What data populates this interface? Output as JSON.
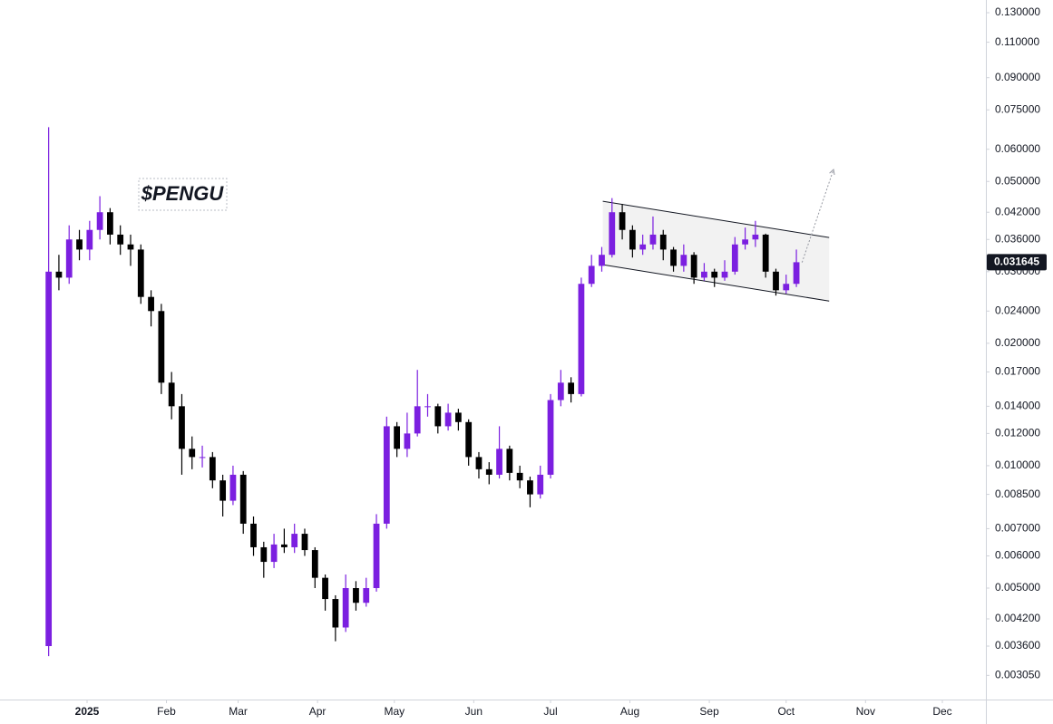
{
  "chart_data": {
    "type": "candlestick",
    "title": "$PENGU",
    "log_scale": true,
    "grid": false,
    "up_color": "#7b1fe0",
    "down_color": "#000000",
    "xlim": [
      -34,
      351
    ],
    "ylim": [
      0.00266,
      0.1397
    ],
    "xticks": [
      {
        "value": 0,
        "label": "2025"
      },
      {
        "value": 31,
        "label": "Feb"
      },
      {
        "value": 59,
        "label": "Mar"
      },
      {
        "value": 90,
        "label": "Apr"
      },
      {
        "value": 120,
        "label": "May"
      },
      {
        "value": 151,
        "label": "Jun"
      },
      {
        "value": 181,
        "label": "Jul"
      },
      {
        "value": 212,
        "label": "Aug"
      },
      {
        "value": 243,
        "label": "Sep"
      },
      {
        "value": 273,
        "label": "Oct"
      },
      {
        "value": 304,
        "label": "Nov"
      },
      {
        "value": 334,
        "label": "Dec"
      }
    ],
    "yticks": [
      {
        "value": 0.13,
        "label": "0.130000"
      },
      {
        "value": 0.11,
        "label": "0.110000"
      },
      {
        "value": 0.09,
        "label": "0.090000"
      },
      {
        "value": 0.075,
        "label": "0.075000"
      },
      {
        "value": 0.06,
        "label": "0.060000"
      },
      {
        "value": 0.05,
        "label": "0.050000"
      },
      {
        "value": 0.042,
        "label": "0.042000"
      },
      {
        "value": 0.036,
        "label": "0.036000"
      },
      {
        "value": 0.03,
        "label": "0.030000"
      },
      {
        "value": 0.024,
        "label": "0.024000"
      },
      {
        "value": 0.02,
        "label": "0.020000"
      },
      {
        "value": 0.017,
        "label": "0.017000"
      },
      {
        "value": 0.014,
        "label": "0.014000"
      },
      {
        "value": 0.012,
        "label": "0.012000"
      },
      {
        "value": 0.01,
        "label": "0.010000"
      },
      {
        "value": 0.0085,
        "label": "0.008500"
      },
      {
        "value": 0.007,
        "label": "0.007000"
      },
      {
        "value": 0.006,
        "label": "0.006000"
      },
      {
        "value": 0.005,
        "label": "0.005000"
      },
      {
        "value": 0.0042,
        "label": "0.004200"
      },
      {
        "value": 0.0036,
        "label": "0.003600"
      },
      {
        "value": 0.00305,
        "label": "0.003050"
      }
    ],
    "last_price": 0.031645,
    "x": [
      -15,
      -11,
      -7,
      -3,
      1,
      5,
      9,
      13,
      17,
      21,
      25,
      29,
      33,
      37,
      41,
      45,
      49,
      53,
      57,
      61,
      65,
      69,
      73,
      77,
      81,
      85,
      89,
      93,
      97,
      101,
      105,
      109,
      113,
      117,
      121,
      125,
      129,
      133,
      137,
      141,
      145,
      149,
      153,
      157,
      161,
      165,
      169,
      173,
      177,
      181,
      185,
      189,
      193,
      197,
      201,
      205,
      209,
      213,
      217,
      221,
      225,
      229,
      233,
      237,
      241,
      245,
      249,
      253,
      257,
      261,
      265,
      269,
      273,
      277
    ],
    "open": [
      0.0036,
      0.03,
      0.029,
      0.036,
      0.034,
      0.038,
      0.042,
      0.037,
      0.035,
      0.034,
      0.026,
      0.024,
      0.016,
      0.014,
      0.011,
      0.0105,
      0.0105,
      0.0092,
      0.0082,
      0.0095,
      0.0072,
      0.0063,
      0.0058,
      0.0064,
      0.0063,
      0.0068,
      0.0062,
      0.0053,
      0.0047,
      0.004,
      0.005,
      0.0046,
      0.005,
      0.0072,
      0.0125,
      0.011,
      0.012,
      0.014,
      0.014,
      0.0125,
      0.0135,
      0.0128,
      0.0105,
      0.0098,
      0.0095,
      0.011,
      0.0096,
      0.0092,
      0.0085,
      0.0095,
      0.0145,
      0.016,
      0.015,
      0.028,
      0.031,
      0.033,
      0.042,
      0.038,
      0.034,
      0.035,
      0.037,
      0.034,
      0.031,
      0.033,
      0.029,
      0.03,
      0.029,
      0.03,
      0.035,
      0.036,
      0.037,
      0.03,
      0.027,
      0.028
    ],
    "high": [
      0.068,
      0.033,
      0.039,
      0.038,
      0.04,
      0.046,
      0.043,
      0.039,
      0.037,
      0.035,
      0.027,
      0.025,
      0.017,
      0.015,
      0.0118,
      0.0112,
      0.0108,
      0.0095,
      0.01,
      0.0097,
      0.0075,
      0.0065,
      0.0068,
      0.007,
      0.0072,
      0.007,
      0.0063,
      0.0054,
      0.0048,
      0.0054,
      0.0052,
      0.0053,
      0.0076,
      0.0132,
      0.0128,
      0.0135,
      0.0172,
      0.015,
      0.0142,
      0.0142,
      0.0138,
      0.013,
      0.0108,
      0.0102,
      0.0125,
      0.0112,
      0.01,
      0.0094,
      0.01,
      0.015,
      0.0172,
      0.0165,
      0.029,
      0.033,
      0.0345,
      0.0455,
      0.044,
      0.039,
      0.037,
      0.041,
      0.038,
      0.0345,
      0.035,
      0.0335,
      0.0315,
      0.0305,
      0.032,
      0.0365,
      0.0385,
      0.04,
      0.0372,
      0.0305,
      0.0295,
      0.034
    ],
    "low": [
      0.0034,
      0.027,
      0.028,
      0.032,
      0.032,
      0.036,
      0.035,
      0.033,
      0.031,
      0.025,
      0.022,
      0.015,
      0.013,
      0.0095,
      0.0098,
      0.0099,
      0.0088,
      0.0075,
      0.008,
      0.0068,
      0.006,
      0.0053,
      0.0056,
      0.0061,
      0.0061,
      0.006,
      0.005,
      0.0044,
      0.0037,
      0.0039,
      0.0044,
      0.0045,
      0.0049,
      0.007,
      0.0105,
      0.0105,
      0.0118,
      0.0132,
      0.012,
      0.0122,
      0.0122,
      0.01,
      0.0093,
      0.009,
      0.0093,
      0.0092,
      0.0088,
      0.0079,
      0.0083,
      0.0093,
      0.014,
      0.0143,
      0.0148,
      0.0275,
      0.03,
      0.0325,
      0.036,
      0.0325,
      0.033,
      0.034,
      0.032,
      0.03,
      0.03,
      0.028,
      0.0285,
      0.0275,
      0.0285,
      0.0295,
      0.034,
      0.0345,
      0.029,
      0.0262,
      0.0265,
      0.0275
    ],
    "close": [
      0.03,
      0.029,
      0.036,
      0.034,
      0.038,
      0.042,
      0.037,
      0.035,
      0.034,
      0.026,
      0.024,
      0.016,
      0.014,
      0.011,
      0.0105,
      0.0105,
      0.0092,
      0.0082,
      0.0095,
      0.0072,
      0.0063,
      0.0058,
      0.0064,
      0.0063,
      0.0068,
      0.0062,
      0.0053,
      0.0047,
      0.004,
      0.005,
      0.0046,
      0.005,
      0.0072,
      0.0125,
      0.011,
      0.012,
      0.014,
      0.014,
      0.0125,
      0.0135,
      0.0128,
      0.0105,
      0.0098,
      0.0095,
      0.011,
      0.0096,
      0.0092,
      0.0085,
      0.0095,
      0.0145,
      0.016,
      0.015,
      0.028,
      0.031,
      0.033,
      0.042,
      0.038,
      0.034,
      0.035,
      0.037,
      0.034,
      0.031,
      0.033,
      0.029,
      0.03,
      0.029,
      0.03,
      0.035,
      0.036,
      0.037,
      0.03,
      0.027,
      0.028,
      0.031645
    ],
    "channel": {
      "fill": "#f2f2f2",
      "upper": {
        "x": [
          201.4,
          289.8
        ],
        "y": [
          0.0447,
          0.0364
        ]
      },
      "lower": {
        "x": [
          201.4,
          289.8
        ],
        "y": [
          0.0312,
          0.0254
        ]
      }
    },
    "projection": {
      "x": [
        279.2,
        291.5
      ],
      "y": [
        0.0316,
        0.0535
      ]
    }
  }
}
